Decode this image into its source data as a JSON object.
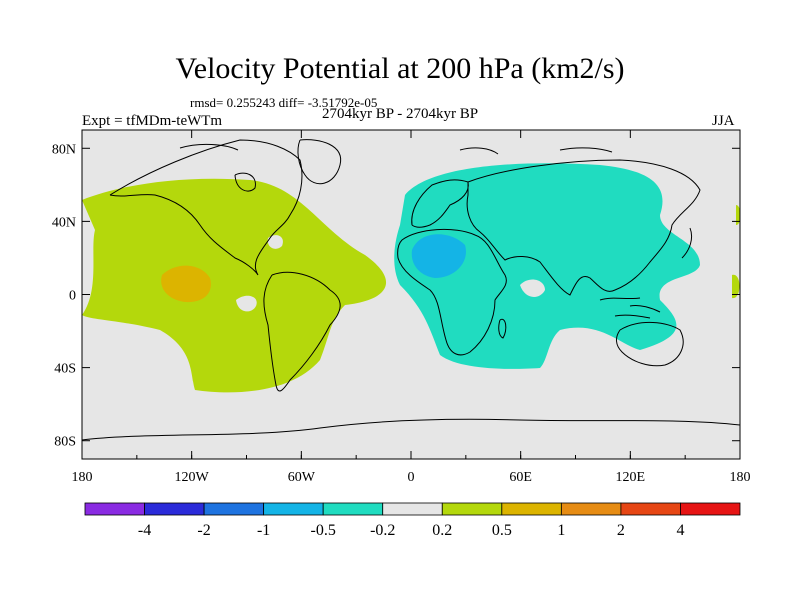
{
  "title": "Velocity Potential at 200 hPa (km2/s)",
  "stats_line": "rmsd= 0.255243 diff= -3.51792e-05",
  "left_label": "Expt = tfMDm-teWTm",
  "center_label": "2704kyr BP - 2704kyr BP",
  "right_label": "JJA",
  "map": {
    "projection": "cylindrical-equidistant",
    "lon_range": [
      -180,
      180
    ],
    "lat_range": [
      -90,
      90
    ],
    "background_color": "#e6e6e6",
    "coastline_color": "#000000",
    "x_ticks": [
      {
        "lon": -180,
        "label": "180"
      },
      {
        "lon": -120,
        "label": "120W"
      },
      {
        "lon": -60,
        "label": "60W"
      },
      {
        "lon": 0,
        "label": "0"
      },
      {
        "lon": 60,
        "label": "60E"
      },
      {
        "lon": 120,
        "label": "120E"
      },
      {
        "lon": 180,
        "label": "180"
      }
    ],
    "y_ticks": [
      {
        "lat": 80,
        "label": "80N"
      },
      {
        "lat": 40,
        "label": "40N"
      },
      {
        "lat": 0,
        "label": "0"
      },
      {
        "lat": -40,
        "label": "40S"
      },
      {
        "lat": -80,
        "label": "80S"
      }
    ]
  },
  "colorbar": {
    "colors": [
      "#8a2be2",
      "#2b2bd9",
      "#1e73e0",
      "#14b4e6",
      "#20dcc0",
      "#e6e6e6",
      "#b4d80c",
      "#dcb400",
      "#e68c14",
      "#e64614",
      "#e61414"
    ],
    "labels": [
      "-4",
      "-2",
      "-1",
      "-0.5",
      "-0.2",
      "0.2",
      "0.5",
      "1",
      "2",
      "4"
    ]
  },
  "field_regions": [
    {
      "name": "western-positive-region",
      "level": "0.2 to 0.5",
      "color": "#b4d80c"
    },
    {
      "name": "pacific-maximum",
      "level": "0.5 to 1",
      "color": "#dcb400"
    },
    {
      "name": "eastern-negative-region",
      "level": "-0.5 to -0.2",
      "color": "#20dcc0"
    },
    {
      "name": "north-africa-minimum",
      "level": "-1 to -0.5",
      "color": "#14b4e6"
    }
  ]
}
